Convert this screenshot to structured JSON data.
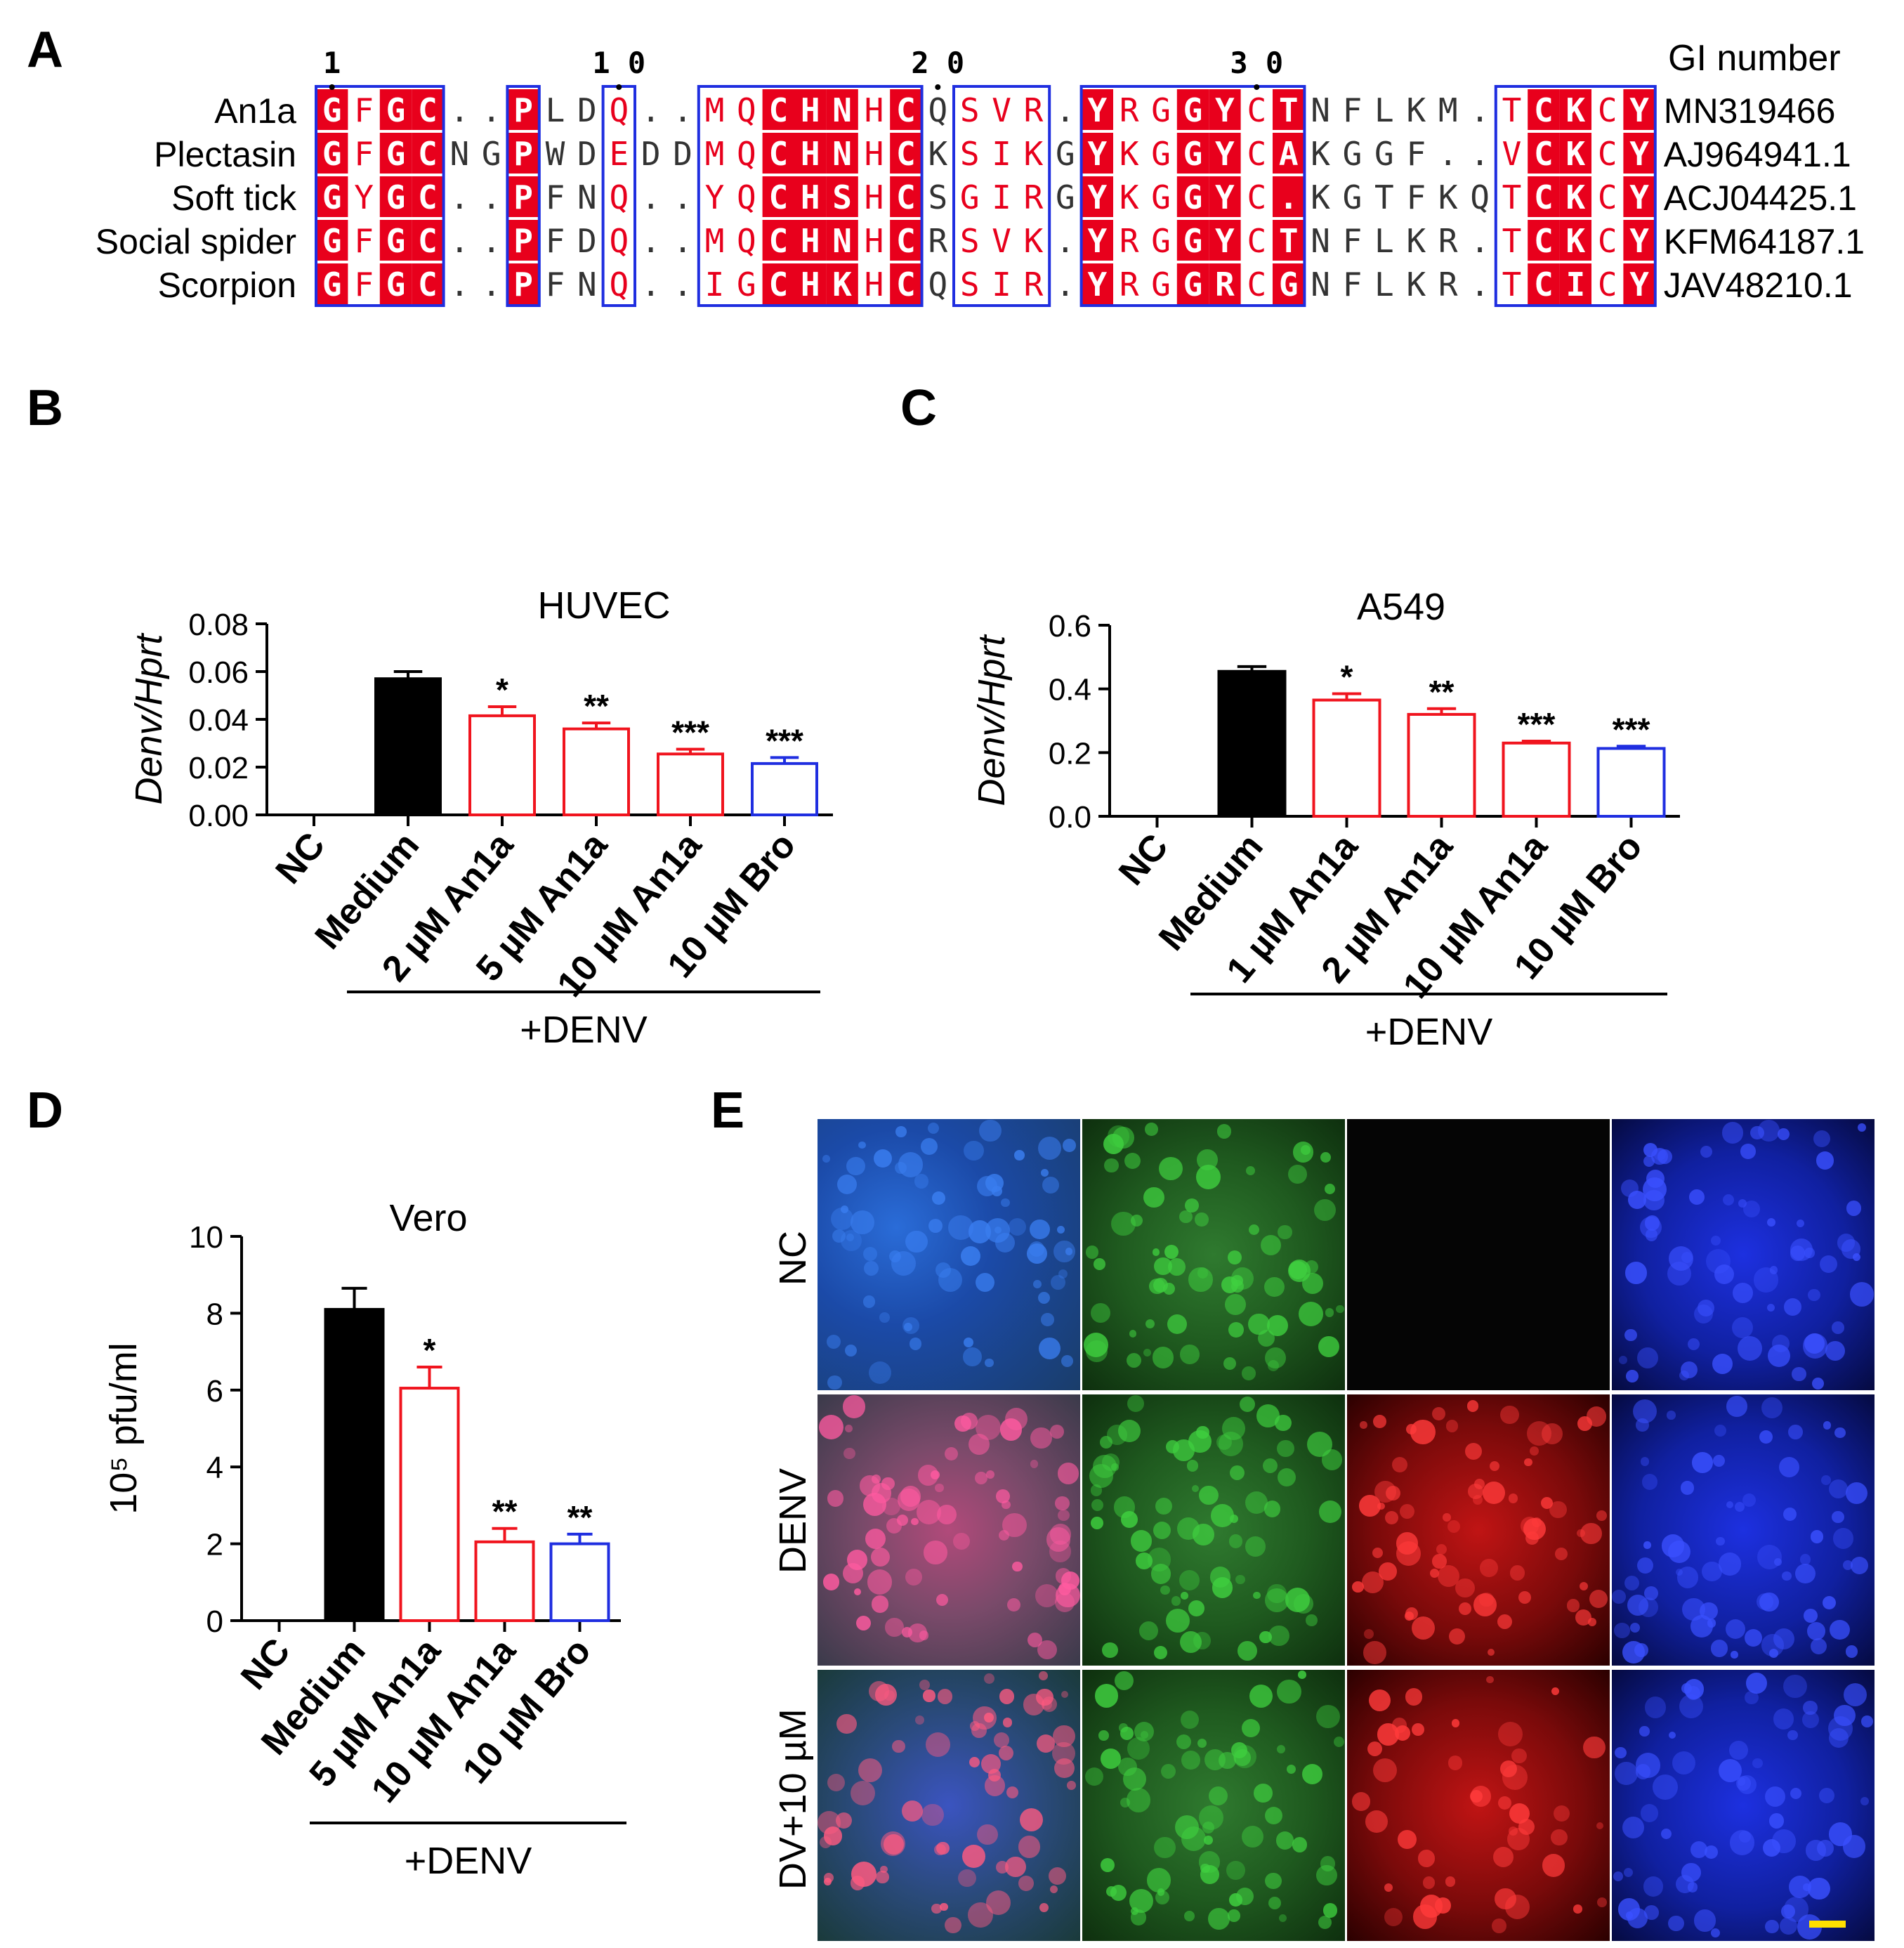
{
  "panels": {
    "a": "A",
    "b": "B",
    "c": "C",
    "d": "D",
    "e": "E"
  },
  "alignment": {
    "position_labels": [
      "1",
      "10",
      "20",
      "30"
    ],
    "gi_header": "GI number",
    "sequences": [
      {
        "name": "An1a",
        "seq": "GFGC..PLDQ..MQCHNHCQSVR.YRGGYCTNFLKM.TCKCY",
        "gi": "MN319466"
      },
      {
        "name": "Plectasin",
        "seq": "GFGCNGPWDEDDMQCHNHCKSIKGYKGGYCAKGGF..VCKCY",
        "gi": "AJ964941.1"
      },
      {
        "name": "Soft tick",
        "seq": "GYGC..PFNQ..YQCHSHCSGIRGYKGGYC.KGTFKQTCKCY",
        "gi": "ACJ04425.1"
      },
      {
        "name": "Social spider",
        "seq": "GFGC..PFDQ..MQCHNHCRSVK.YRGGYCTNFLKR.TCKCY",
        "gi": "KFM64187.1"
      },
      {
        "name": "Scorpion",
        "seq": "GFGC..PFNQ..IGCHKHCQSIR.YRGGRCGNFLKR.TCICY",
        "gi": "JAV48210.1"
      }
    ]
  },
  "chart_data": [
    {
      "type": "bar",
      "title": "HUVEC",
      "ylabel": "Denv/Hprt",
      "categories": [
        "NC",
        "Medium",
        "2 µM An1a",
        "5 µM An1a",
        "10 µM An1a",
        "10 µM Bro"
      ],
      "values": [
        0,
        0.057,
        0.0415,
        0.036,
        0.0255,
        0.0215
      ],
      "errors": [
        0,
        0.003,
        0.0038,
        0.0025,
        0.002,
        0.0025
      ],
      "significance": [
        "",
        "",
        "*",
        "**",
        "***",
        "***"
      ],
      "ylim": [
        0,
        0.08
      ],
      "yticks": [
        "0.00",
        "0.02",
        "0.04",
        "0.06",
        "0.08"
      ],
      "group_label": "+DENV",
      "bar_styles": [
        "none",
        "filled-black",
        "open-red",
        "open-red",
        "open-red",
        "open-blue"
      ]
    },
    {
      "type": "bar",
      "title": "A549",
      "ylabel": "Denv/Hprt",
      "categories": [
        "NC",
        "Medium",
        "1 µM An1a",
        "2 µM An1a",
        "10 µM An1a",
        "10 µM Bro"
      ],
      "values": [
        0,
        0.455,
        0.365,
        0.32,
        0.23,
        0.213
      ],
      "errors": [
        0,
        0.015,
        0.02,
        0.018,
        0.006,
        0.007
      ],
      "significance": [
        "",
        "",
        "*",
        "**",
        "***",
        "***"
      ],
      "ylim": [
        0,
        0.6
      ],
      "yticks": [
        "0.0",
        "0.2",
        "0.4",
        "0.6"
      ],
      "group_label": "+DENV",
      "bar_styles": [
        "none",
        "filled-black",
        "open-red",
        "open-red",
        "open-red",
        "open-blue"
      ]
    },
    {
      "type": "bar",
      "title": "Vero",
      "ylabel": "10⁵ pfu/ml",
      "categories": [
        "NC",
        "Medium",
        "5 µM An1a",
        "10 µM An1a",
        "10 µM Bro"
      ],
      "values": [
        0,
        8.1,
        6.05,
        2.05,
        2.0
      ],
      "errors": [
        0,
        0.55,
        0.55,
        0.35,
        0.25
      ],
      "significance": [
        "",
        "",
        "*",
        "**",
        "**"
      ],
      "ylim": [
        0,
        10
      ],
      "yticks": [
        "0",
        "2",
        "4",
        "6",
        "8",
        "10"
      ],
      "group_label": "+DENV",
      "bar_styles": [
        "none",
        "filled-black",
        "open-red",
        "open-red",
        "open-blue"
      ]
    }
  ],
  "microscopy": {
    "row_labels": [
      "NC",
      "DENV",
      "DV+10 µM"
    ],
    "colors": {
      "blue": "#1530d8",
      "green": "#1fa01f",
      "red": "#e01010",
      "black": "#050505",
      "scale_bar": "#ffe000"
    }
  }
}
